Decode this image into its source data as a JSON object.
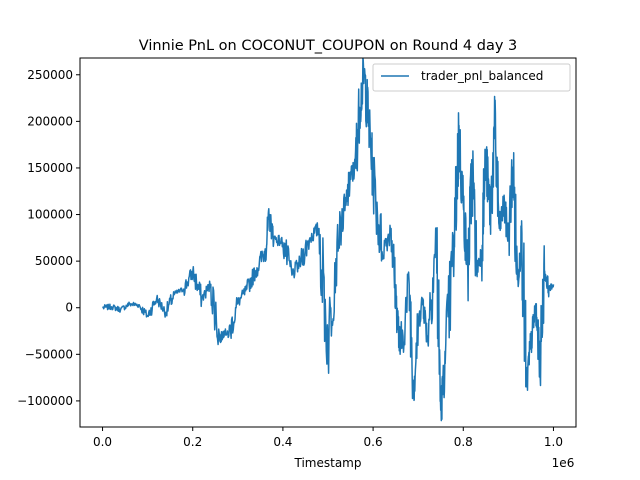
{
  "chart_data": {
    "type": "line",
    "title": "Vinnie PnL on COCONUT_COUPON on Round 4 day 3",
    "xlabel": "Timestamp",
    "ylabel": "",
    "x_offset_label": "1e6",
    "xlim": [
      -0.05,
      1.05
    ],
    "ylim": [
      -128000,
      268000
    ],
    "x_ticks": [
      0.0,
      0.2,
      0.4,
      0.6,
      0.8,
      1.0
    ],
    "x_tick_labels": [
      "0.0",
      "0.2",
      "0.4",
      "0.6",
      "0.8",
      "1.0"
    ],
    "y_ticks": [
      -100000,
      -50000,
      0,
      50000,
      100000,
      150000,
      200000,
      250000
    ],
    "y_tick_labels": [
      "−100000",
      "−50000",
      "0",
      "50000",
      "100000",
      "150000",
      "200000",
      "250000"
    ],
    "grid": false,
    "legend_position": "top-right",
    "series": [
      {
        "name": "trader_pnl_balanced",
        "color": "#1f77b4",
        "x": [
          0.0,
          0.02,
          0.04,
          0.06,
          0.08,
          0.1,
          0.12,
          0.14,
          0.16,
          0.18,
          0.2,
          0.22,
          0.24,
          0.26,
          0.27,
          0.28,
          0.3,
          0.32,
          0.34,
          0.36,
          0.37,
          0.38,
          0.4,
          0.42,
          0.44,
          0.46,
          0.48,
          0.5,
          0.52,
          0.54,
          0.55,
          0.56,
          0.57,
          0.58,
          0.59,
          0.6,
          0.62,
          0.64,
          0.65,
          0.66,
          0.68,
          0.69,
          0.7,
          0.71,
          0.72,
          0.74,
          0.75,
          0.76,
          0.78,
          0.79,
          0.8,
          0.81,
          0.82,
          0.83,
          0.84,
          0.85,
          0.86,
          0.87,
          0.88,
          0.89,
          0.9,
          0.91,
          0.92,
          0.93,
          0.94,
          0.95,
          0.96,
          0.97,
          0.98,
          0.99,
          1.0
        ],
        "values": [
          0,
          1000,
          -2000,
          4000,
          3000,
          -9000,
          10000,
          -5000,
          15000,
          20000,
          38000,
          10000,
          25000,
          -35000,
          -25000,
          -30000,
          5000,
          20000,
          40000,
          60000,
          95000,
          75000,
          70000,
          35000,
          50000,
          75000,
          85000,
          -40000,
          70000,
          110000,
          140000,
          150000,
          215000,
          250000,
          200000,
          140000,
          60000,
          85000,
          15000,
          -50000,
          25000,
          -85000,
          -20000,
          10000,
          -30000,
          75000,
          -110000,
          -60000,
          70000,
          185000,
          110000,
          40000,
          150000,
          40000,
          60000,
          160000,
          100000,
          190000,
          85000,
          110000,
          75000,
          150000,
          30000,
          80000,
          -85000,
          -40000,
          0,
          -60000,
          40000,
          20000,
          25000
        ]
      }
    ]
  }
}
